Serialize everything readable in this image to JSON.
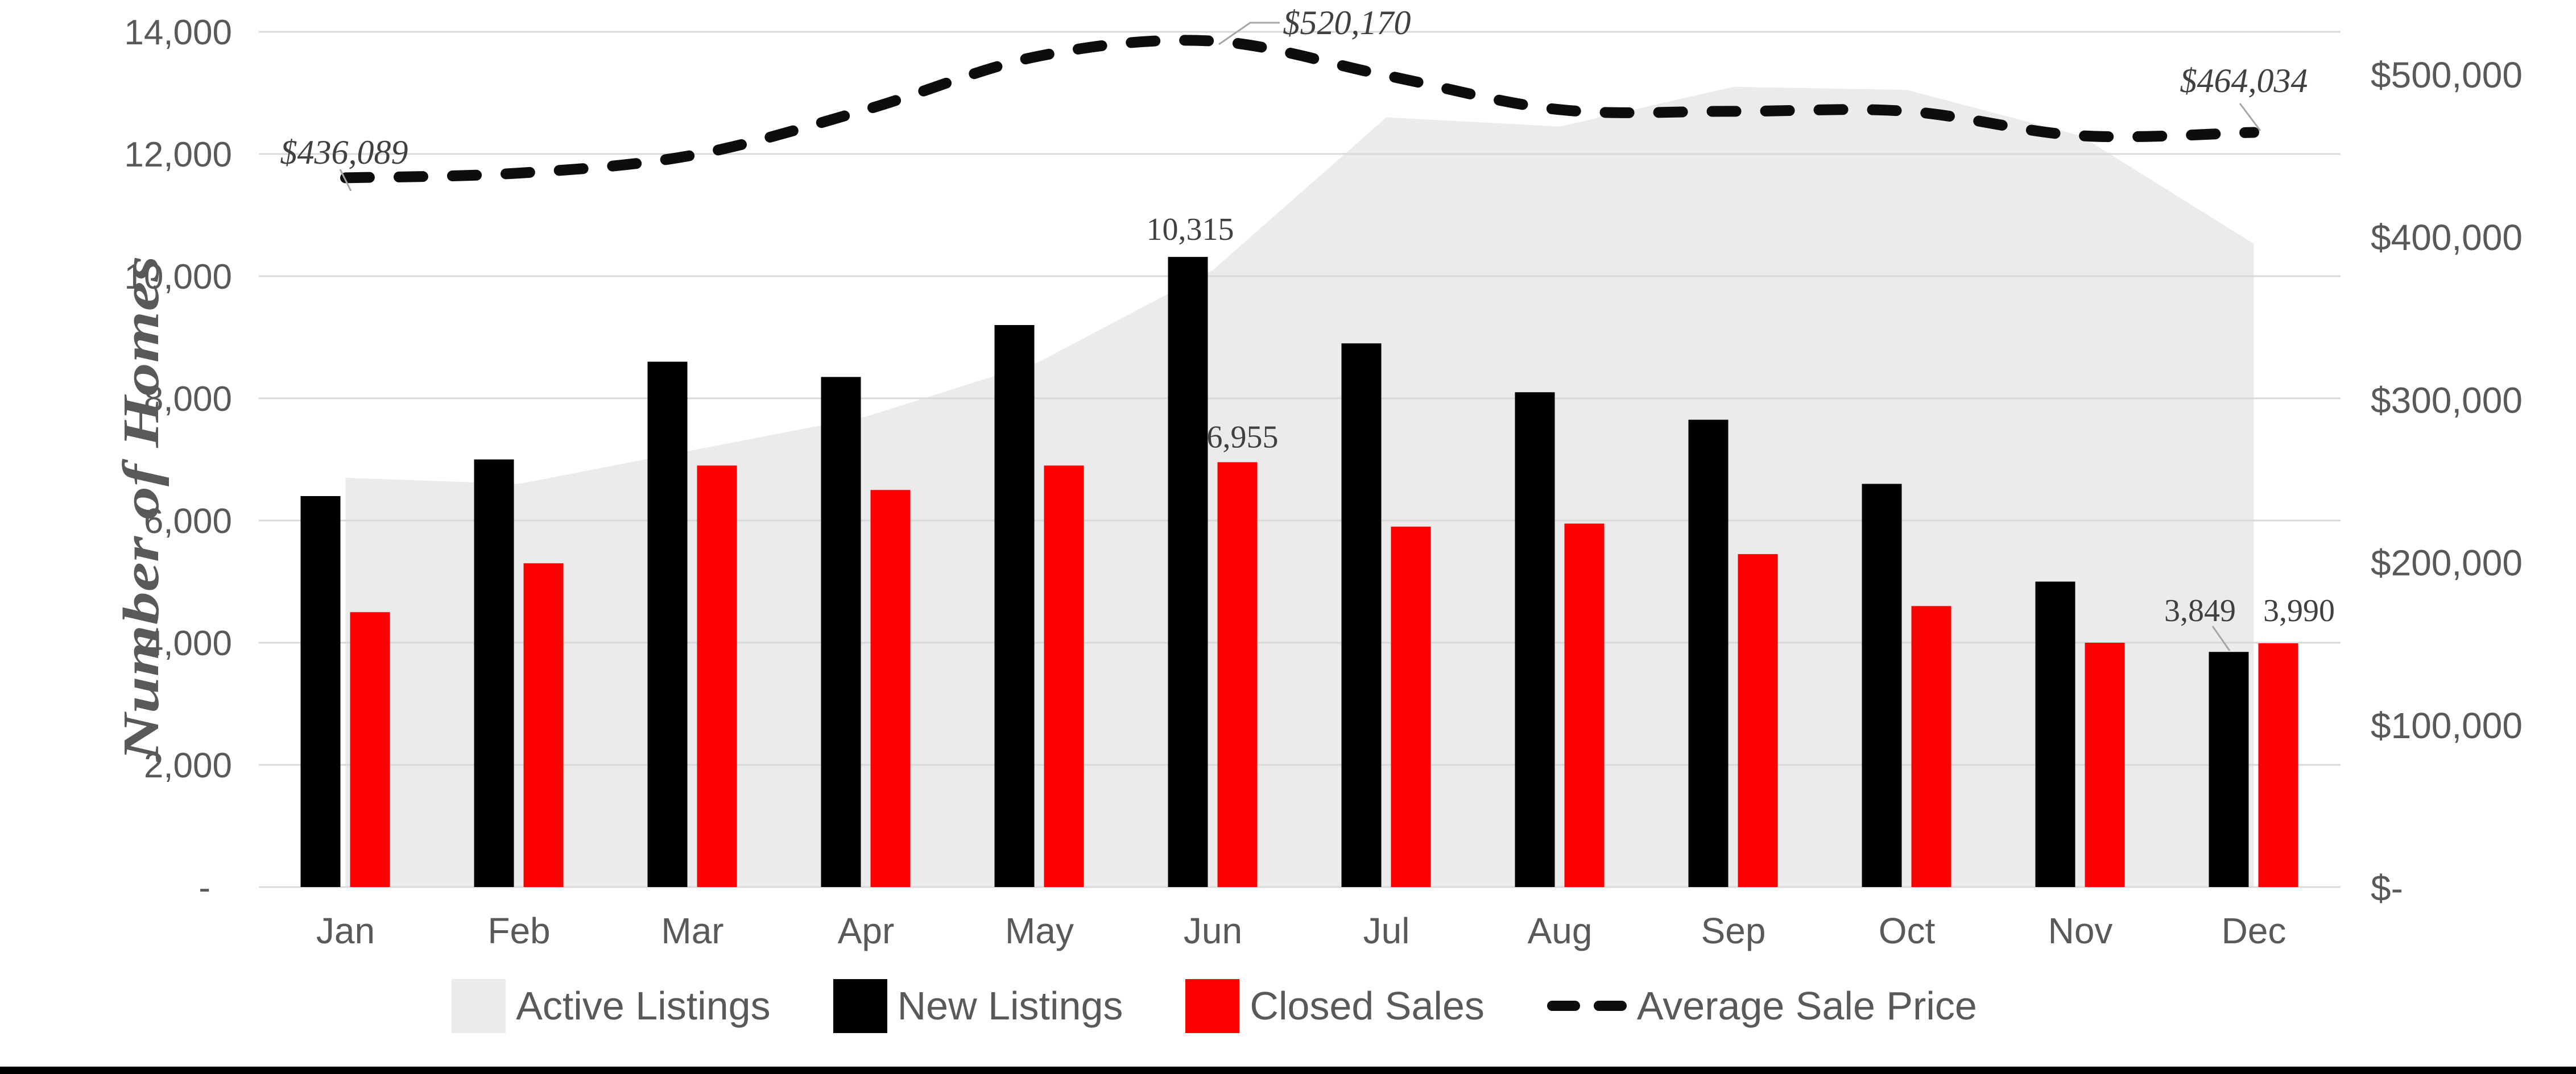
{
  "chart_data": {
    "type": "combo",
    "title": "",
    "categories": [
      "Jan",
      "Feb",
      "Mar",
      "Apr",
      "May",
      "Jun",
      "Jul",
      "Aug",
      "Sep",
      "Oct",
      "Nov",
      "Dec"
    ],
    "left_axis": {
      "label": "Number of Homes",
      "min": 0,
      "max": 14000,
      "tick_interval": 2000,
      "tick_labels": [
        "14,000",
        "12,000",
        "10,000",
        "8,000",
        "6,000",
        "4,000",
        "2,000",
        "-"
      ],
      "grid": true
    },
    "right_axis": {
      "min": 0,
      "max": 525860,
      "tick_values": [
        500000,
        400000,
        300000,
        200000,
        100000,
        0
      ],
      "tick_labels": [
        "$500,000",
        "$400,000",
        "$300,000",
        "$200,000",
        "$100,000",
        "$-"
      ]
    },
    "series": [
      {
        "name": "Active Listings",
        "type": "area",
        "color": "#EBEBEB",
        "axis": "left",
        "values": [
          6700,
          6600,
          7150,
          7700,
          8600,
          10100,
          12600,
          12450,
          13100,
          13050,
          12300,
          10530
        ]
      },
      {
        "name": "New Listings",
        "type": "bar",
        "color": "#000000",
        "axis": "left",
        "values": [
          6400,
          7000,
          8600,
          8350,
          9200,
          10315,
          8900,
          8100,
          7650,
          6600,
          5000,
          3849
        ]
      },
      {
        "name": "Closed Sales",
        "type": "bar",
        "color": "#FF0000",
        "axis": "left",
        "values": [
          4500,
          5300,
          6900,
          6500,
          6900,
          6955,
          5900,
          5950,
          5450,
          4600,
          4000,
          3990
        ]
      },
      {
        "name": "Average Sale Price",
        "type": "line-dashed",
        "color": "#0D0D0D",
        "axis": "right",
        "smooth": true,
        "values": [
          436089,
          439000,
          450000,
          478000,
          511000,
          520170,
          499000,
          478000,
          477000,
          477000,
          462000,
          464034
        ]
      }
    ],
    "data_labels": [
      {
        "id": "jun-new",
        "text": "10,315",
        "series": "New Listings",
        "category": "Jun"
      },
      {
        "id": "jun-closed",
        "text": "6,955",
        "series": "Closed Sales",
        "category": "Jun"
      },
      {
        "id": "dec-new",
        "text": "3,849",
        "series": "New Listings",
        "category": "Dec"
      },
      {
        "id": "dec-closed",
        "text": "3,990",
        "series": "Closed Sales",
        "category": "Dec"
      }
    ],
    "annotations": [
      {
        "id": "jan-price",
        "text": "$436,089",
        "series": "Average Sale Price",
        "category": "Jan"
      },
      {
        "id": "jun-price",
        "text": "$520,170",
        "series": "Average Sale Price",
        "category": "Jun"
      },
      {
        "id": "dec-price",
        "text": "$464,034",
        "series": "Average Sale Price",
        "category": "Dec"
      }
    ],
    "legend": {
      "position": "bottom",
      "items": [
        "Active Listings",
        "New Listings",
        "Closed Sales",
        "Average Sale Price"
      ]
    },
    "colors": {
      "grid": "#D9D9D9",
      "axis_text": "#595959",
      "label_text": "#404040",
      "background": "#FFFFFF",
      "bottom_border": "#000000",
      "leader": "#A6A6A6"
    }
  }
}
